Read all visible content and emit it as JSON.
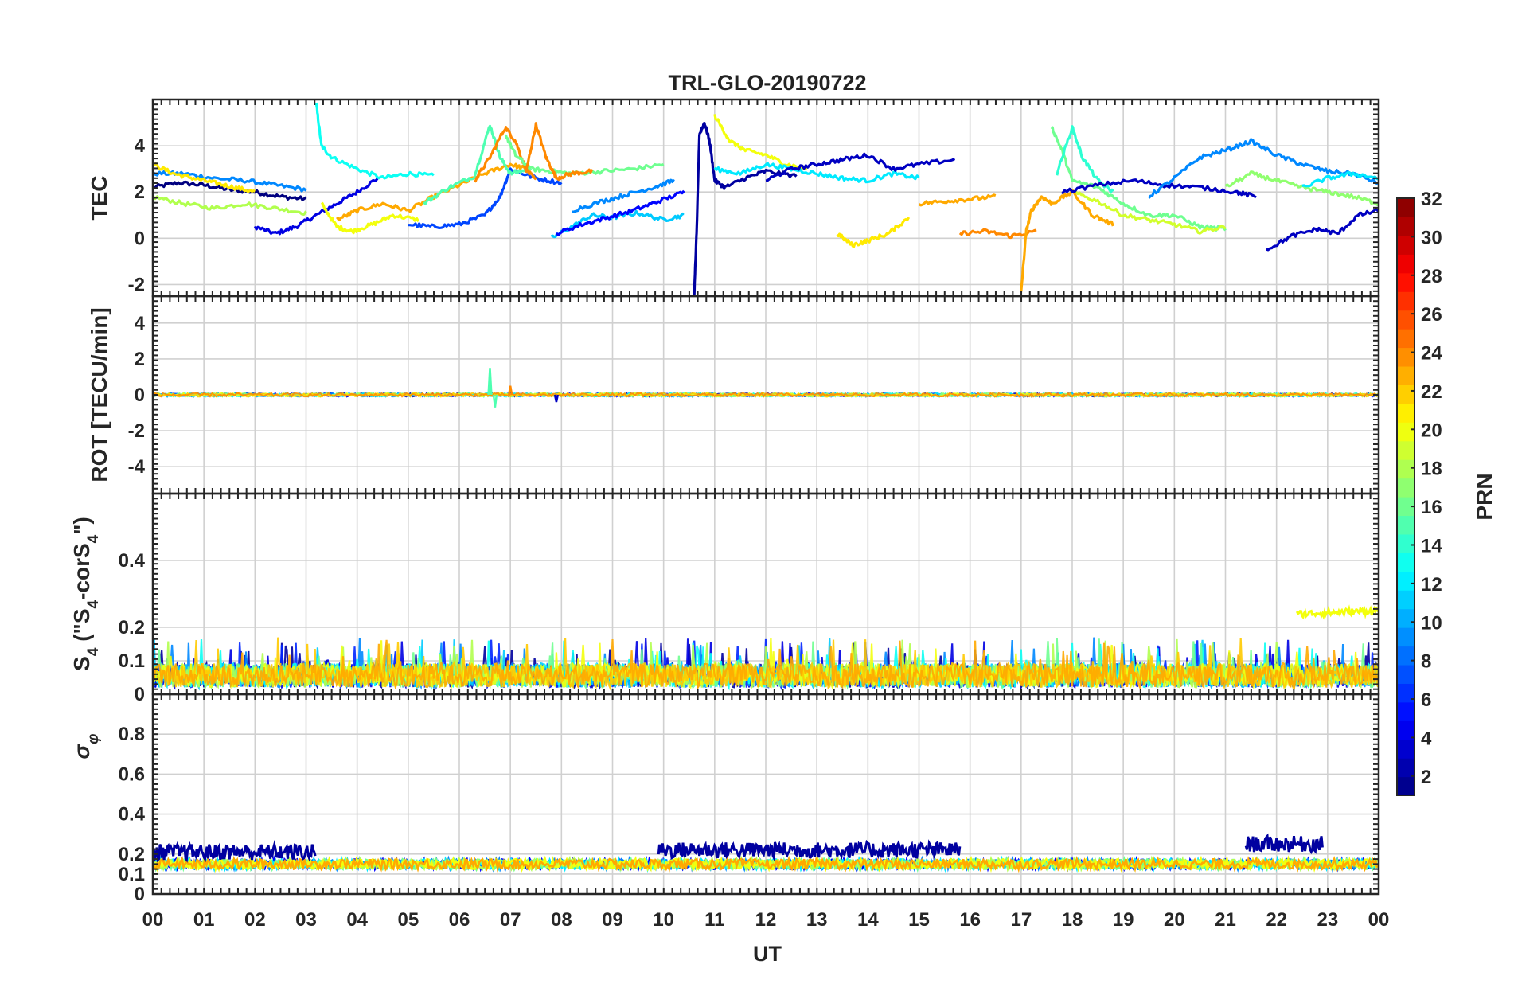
{
  "chart_data": {
    "type": "line",
    "title": "TRL-GLO-20190722",
    "xlabel": "UT",
    "xlim": [
      0,
      24
    ],
    "xticks": [
      "00",
      "01",
      "02",
      "03",
      "04",
      "05",
      "06",
      "07",
      "08",
      "09",
      "10",
      "11",
      "12",
      "13",
      "14",
      "15",
      "16",
      "17",
      "18",
      "19",
      "20",
      "21",
      "22",
      "23",
      "00"
    ],
    "panels": [
      {
        "id": "tec",
        "ylabel": "TEC",
        "ylim": [
          -2.5,
          6
        ],
        "yticks": [
          -2,
          0,
          2,
          4
        ],
        "series": [
          {
            "prn": 1,
            "x": [
              0.0,
              0.5,
              1.0,
              1.5,
              2.0,
              2.5,
              3.0
            ],
            "y": [
              2.2,
              2.4,
              2.3,
              2.1,
              2.0,
              1.8,
              1.7
            ]
          },
          {
            "prn": 4,
            "x": [
              2.0,
              2.4,
              2.8,
              3.2,
              3.6,
              4.0,
              4.4
            ],
            "y": [
              0.5,
              0.2,
              0.5,
              1.0,
              1.5,
              2.0,
              2.6
            ]
          },
          {
            "prn": 9,
            "x": [
              0.0,
              0.6,
              1.2,
              1.8,
              2.4,
              3.0
            ],
            "y": [
              2.8,
              2.8,
              2.6,
              2.5,
              2.3,
              2.1
            ]
          },
          {
            "prn": 13,
            "x": [
              3.2,
              3.3,
              3.5,
              4.0,
              4.5,
              5.0,
              5.5
            ],
            "y": [
              5.8,
              4.0,
              3.5,
              3.0,
              2.6,
              2.8,
              2.7
            ]
          },
          {
            "prn": 18,
            "x": [
              0.0,
              0.6,
              1.2,
              1.8,
              2.4,
              3.0
            ],
            "y": [
              1.8,
              1.5,
              1.3,
              1.5,
              1.3,
              1.1
            ]
          },
          {
            "prn": 21,
            "x": [
              0.0,
              0.4,
              0.8,
              1.2,
              1.6,
              2.0
            ],
            "y": [
              3.2,
              2.8,
              2.6,
              2.4,
              2.2,
              2.0
            ]
          },
          {
            "prn": 20,
            "x": [
              3.3,
              3.6,
              3.9,
              4.3,
              4.7,
              5.2
            ],
            "y": [
              1.5,
              0.5,
              0.3,
              0.6,
              1.0,
              0.8
            ]
          },
          {
            "prn": 23,
            "x": [
              3.6,
              4.0,
              4.5,
              5.0,
              5.5,
              6.0,
              6.5,
              7.0,
              7.3
            ],
            "y": [
              0.8,
              1.2,
              1.5,
              1.2,
              1.8,
              2.3,
              2.8,
              3.2,
              3.0
            ]
          },
          {
            "prn": 7,
            "x": [
              5.0,
              5.5,
              6.0,
              6.5,
              6.8,
              7.0,
              7.5,
              8.0
            ],
            "y": [
              0.6,
              0.5,
              0.6,
              1.0,
              1.8,
              3.0,
              2.6,
              2.4
            ]
          },
          {
            "prn": 15,
            "x": [
              5.3,
              5.8,
              6.3,
              6.6,
              6.8,
              7.0,
              7.4
            ],
            "y": [
              1.5,
              2.2,
              2.7,
              4.9,
              3.5,
              2.8,
              3.0
            ]
          },
          {
            "prn": 24,
            "x": [
              6.3,
              6.6,
              6.9,
              7.1,
              7.3,
              7.5
            ],
            "y": [
              2.5,
              3.5,
              4.8,
              4.2,
              3.0,
              2.5
            ]
          },
          {
            "prn": 16,
            "x": [
              6.9,
              7.1,
              7.4,
              7.8,
              8.2,
              8.8,
              9.4,
              10.0
            ],
            "y": [
              4.5,
              3.6,
              3.0,
              2.9,
              2.8,
              2.9,
              3.0,
              3.2
            ]
          },
          {
            "prn": 24,
            "x": [
              7.3,
              7.5,
              7.7,
              7.9,
              8.2,
              8.6
            ],
            "y": [
              2.8,
              4.9,
              3.5,
              2.6,
              2.8,
              2.9
            ]
          },
          {
            "prn": 11,
            "x": [
              7.8,
              8.2,
              8.6,
              9.0,
              9.5,
              10.0,
              10.4
            ],
            "y": [
              0.0,
              0.5,
              1.0,
              0.9,
              1.1,
              0.8,
              1.0
            ]
          },
          {
            "prn": 5,
            "x": [
              7.9,
              8.4,
              8.9,
              9.4,
              9.9,
              10.4
            ],
            "y": [
              0.2,
              0.6,
              0.9,
              1.2,
              1.6,
              2.0
            ]
          },
          {
            "prn": 9,
            "x": [
              8.2,
              8.8,
              9.3,
              9.8,
              10.2
            ],
            "y": [
              1.2,
              1.6,
              1.9,
              2.2,
              2.5
            ]
          },
          {
            "prn": 2,
            "x": [
              10.6,
              10.65,
              10.7,
              10.8,
              10.9,
              11.0,
              11.2,
              11.6,
              12.0,
              12.6
            ],
            "y": [
              -2.4,
              0.5,
              4.5,
              5.0,
              4.2,
              2.5,
              2.2,
              2.6,
              2.9,
              2.7
            ]
          },
          {
            "prn": 20,
            "x": [
              11.0,
              11.3,
              11.6,
              12.0,
              12.4,
              12.8
            ],
            "y": [
              5.3,
              4.2,
              3.8,
              3.6,
              3.2,
              3.0
            ]
          },
          {
            "prn": 12,
            "x": [
              11.0,
              11.5,
              12.0,
              12.5,
              13.0,
              13.5,
              14.0,
              14.5,
              15.0
            ],
            "y": [
              3.0,
              2.8,
              3.2,
              3.0,
              2.8,
              2.6,
              2.5,
              2.8,
              2.6
            ]
          },
          {
            "prn": 3,
            "x": [
              12.0,
              12.5,
              13.0,
              13.5,
              14.0,
              14.5,
              15.0,
              15.7
            ],
            "y": [
              2.5,
              3.0,
              3.2,
              3.4,
              3.6,
              3.0,
              3.2,
              3.4
            ]
          },
          {
            "prn": 21,
            "x": [
              13.4,
              13.7,
              14.0,
              14.4,
              14.8
            ],
            "y": [
              0.2,
              -0.3,
              -0.1,
              0.2,
              0.9
            ]
          },
          {
            "prn": 23,
            "x": [
              15.0,
              15.5,
              16.0,
              16.5
            ],
            "y": [
              1.5,
              1.6,
              1.7,
              1.8
            ]
          },
          {
            "prn": 24,
            "x": [
              15.8,
              16.3,
              16.8,
              17.3
            ],
            "y": [
              0.2,
              0.3,
              0.1,
              0.3
            ]
          },
          {
            "prn": 23,
            "x": [
              17.0,
              17.1,
              17.2,
              17.4,
              17.6,
              18.0,
              18.4,
              18.8
            ],
            "y": [
              -2.3,
              0.3,
              1.2,
              1.8,
              1.5,
              2.0,
              1.0,
              0.6
            ]
          },
          {
            "prn": 16,
            "x": [
              17.6,
              17.8,
              18.0,
              18.5,
              19.0,
              19.5,
              20.0,
              20.5,
              21.0
            ],
            "y": [
              4.8,
              3.8,
              2.5,
              2.2,
              1.5,
              1.0,
              1.0,
              0.5,
              0.4
            ]
          },
          {
            "prn": 19,
            "x": [
              18.0,
              18.5,
              19.0,
              19.5,
              20.0,
              20.5,
              21.0
            ],
            "y": [
              2.0,
              1.6,
              1.0,
              0.8,
              0.6,
              0.3,
              0.5
            ]
          },
          {
            "prn": 14,
            "x": [
              17.7,
              18.0,
              18.2,
              18.5,
              18.8
            ],
            "y": [
              2.8,
              4.8,
              3.5,
              2.5,
              2.0
            ]
          },
          {
            "prn": 3,
            "x": [
              17.8,
              18.5,
              19.2,
              19.8,
              20.5,
              21.2,
              21.6
            ],
            "y": [
              2.0,
              2.3,
              2.5,
              2.3,
              2.2,
              2.0,
              1.8
            ]
          },
          {
            "prn": 9,
            "x": [
              19.5,
              20.0,
              20.5,
              21.0,
              21.5,
              22.0,
              22.5,
              23.0,
              23.5,
              24.0
            ],
            "y": [
              1.8,
              2.6,
              3.5,
              3.8,
              4.2,
              3.6,
              3.2,
              2.9,
              2.8,
              2.4
            ]
          },
          {
            "prn": 17,
            "x": [
              21.0,
              21.5,
              22.0,
              22.5,
              23.0,
              23.5,
              24.0
            ],
            "y": [
              2.2,
              2.8,
              2.5,
              2.2,
              2.0,
              1.8,
              1.5
            ]
          },
          {
            "prn": 3,
            "x": [
              21.8,
              22.3,
              22.8,
              23.2,
              23.6,
              24.0
            ],
            "y": [
              -0.5,
              0.1,
              0.4,
              0.2,
              1.0,
              1.2
            ]
          },
          {
            "prn": 12,
            "x": [
              22.5,
              23.0,
              23.5,
              24.0
            ],
            "y": [
              2.2,
              2.6,
              2.8,
              2.6
            ]
          }
        ]
      },
      {
        "id": "rot",
        "ylabel": "ROT [TECU/min]",
        "ylim": [
          -5.5,
          5.5
        ],
        "yticks": [
          -4,
          -2,
          0,
          2,
          4
        ],
        "noise_level": 0.1,
        "spikes": [
          {
            "prn": 15,
            "x": 6.6,
            "y": 1.5
          },
          {
            "prn": 15,
            "x": 6.7,
            "y": -0.7
          },
          {
            "prn": 24,
            "x": 7.0,
            "y": 0.5
          },
          {
            "prn": 3,
            "x": 7.9,
            "y": -0.4
          }
        ]
      },
      {
        "id": "s4",
        "ylabel": "S4 (\"S4-corS4\")",
        "ylim": [
          0,
          0.6
        ],
        "yticks": [
          0,
          0.1,
          0.2,
          0.4
        ],
        "baseline_max": 0.12,
        "elevated": [
          {
            "prn": 20,
            "x": [
              22.4,
              24.0
            ],
            "y": [
              0.24,
              0.25
            ]
          }
        ]
      },
      {
        "id": "sigma_phi",
        "ylabel": "σφ",
        "ylim": [
          0,
          1
        ],
        "yticks": [
          0,
          0.1,
          0.2,
          0.4,
          0.6,
          0.8
        ],
        "baseline": 0.15,
        "raised_segments": [
          {
            "prn": 2,
            "x": [
              0.0,
              3.2
            ],
            "y": 0.21
          },
          {
            "prn": 2,
            "x": [
              9.9,
              15.8
            ],
            "y": 0.22
          },
          {
            "prn": 2,
            "x": [
              21.4,
              22.9
            ],
            "y": 0.25
          }
        ]
      }
    ],
    "colorbar": {
      "label": "PRN",
      "range": [
        1,
        32
      ],
      "ticks": [
        2,
        4,
        6,
        8,
        10,
        12,
        14,
        16,
        18,
        20,
        22,
        24,
        26,
        28,
        30,
        32
      ]
    }
  }
}
